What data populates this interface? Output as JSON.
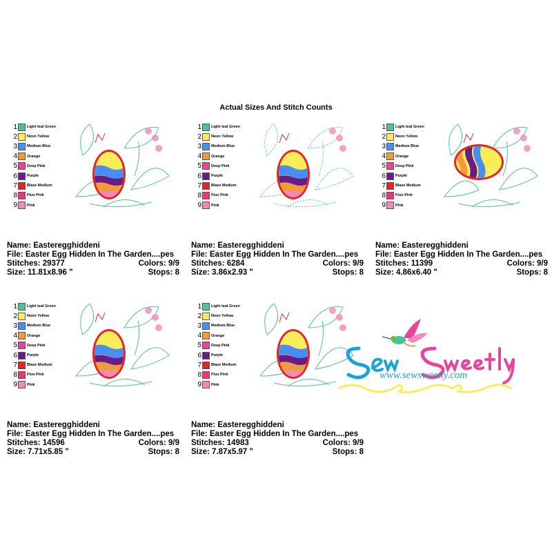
{
  "heading": "Actual Sizes And Stitch Counts",
  "colors": [
    {
      "num": "1",
      "label": "Light teal Green",
      "hex": "#4cc19a"
    },
    {
      "num": "2",
      "label": "Neon Yellow",
      "hex": "#f7ee5a"
    },
    {
      "num": "3",
      "label": "Medium Blue",
      "hex": "#4a8ef2"
    },
    {
      "num": "4",
      "label": "Orange",
      "hex": "#f39a3c"
    },
    {
      "num": "5",
      "label": "Deep Pink",
      "hex": "#e8459a"
    },
    {
      "num": "6",
      "label": "Purple",
      "hex": "#6a1b8a"
    },
    {
      "num": "7",
      "label": "Blaze Medium",
      "hex": "#e52424"
    },
    {
      "num": "8",
      "label": "Fluo Pink",
      "hex": "#f0347a"
    },
    {
      "num": "9",
      "label": "Pink",
      "hex": "#f28ab8"
    }
  ],
  "cards": [
    {
      "name": "Name: Easteregghiddeni",
      "file": "File: Easter Egg Hidden In The Garden....pes",
      "stitches": "Stitches: 29377",
      "colors": "Colors: 9/9",
      "size": "Size: 11.81x8.96 \"",
      "stops": "Stops: 8"
    },
    {
      "name": "Name: Easteregghiddeni",
      "file": "File: Easter Egg Hidden In The Garden....pes",
      "stitches": "Stitches: 6284",
      "colors": "Colors: 9/9",
      "size": "Size: 3.86x2.93 \"",
      "stops": "Stops: 8"
    },
    {
      "name": "Name: Easteregghiddeni",
      "file": "File: Easter Egg Hidden In The Garden....pes",
      "stitches": "Stitches: 11399",
      "colors": "Colors: 9/9",
      "size": "Size: 4.86x6.40 \"",
      "stops": "Stops: 8"
    },
    {
      "name": "Name: Easteregghiddeni",
      "file": "File: Easter Egg Hidden In The Garden....pes",
      "stitches": "Stitches: 14596",
      "colors": "Colors: 9/9",
      "size": "Size: 7.71x5.85 \"",
      "stops": "Stops: 8"
    },
    {
      "name": "Name: Easteregghiddeni",
      "file": "File: Easter Egg Hidden In The Garden....pes",
      "stitches": "Stitches: 14983",
      "colors": "Colors: 9/9",
      "size": "Size: 7.87x5.97 \"",
      "stops": "Stops: 8"
    }
  ],
  "brand": {
    "logo_text": "Sew Sweetly",
    "url": "www.sewsweetly.com",
    "script_color": "#1aa3d6",
    "accent_color": "#e8459a"
  }
}
